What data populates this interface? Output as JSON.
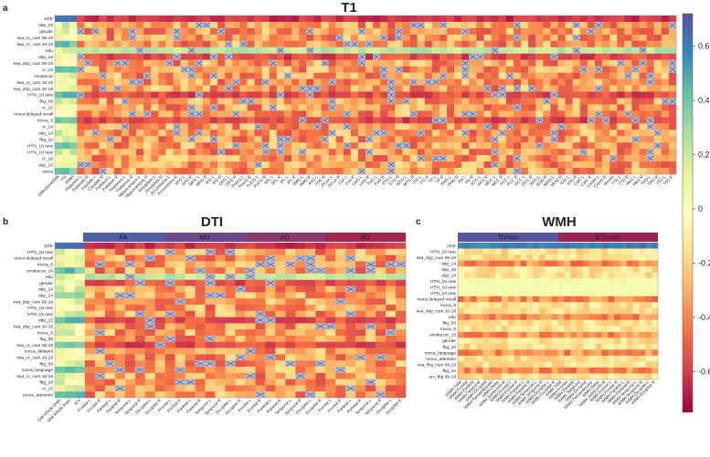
{
  "figure": {
    "panels": [
      {
        "id": "a",
        "letter": "a",
        "title": "T1"
      },
      {
        "id": "b",
        "letter": "b",
        "title": "DTI",
        "groups": [
          "FA",
          "MD",
          "AD",
          "RD"
        ]
      },
      {
        "id": "c",
        "letter": "c",
        "title": "WMH",
        "groups": [
          "TIVcorr",
          "ICVnorm"
        ]
      }
    ],
    "colorbar": {
      "ticks": [
        "0.6",
        "0.4",
        "0.2",
        "0",
        "-0.2",
        "-0.4",
        "-0.6"
      ],
      "range": [
        -0.75,
        0.72
      ],
      "colors": [
        "#9e0142",
        "#d53e4f",
        "#f46d43",
        "#fdae61",
        "#fee08b",
        "#ffffbf",
        "#e6f598",
        "#abdda4",
        "#66c2a5",
        "#3288bd",
        "#5e4fa2"
      ]
    }
  },
  "chart_data": [
    {
      "type": "heatmap",
      "title": "T1",
      "rows": [
        "AGE",
        "sbp_15",
        "gender",
        "twa_cr_cum 06-18",
        "twa_cr_cum 10-18",
        "edu",
        "sbp_18",
        "twa_sbp_cum 06-18",
        "cr_15",
        "smokecur",
        "twa_cr_cum 15-18",
        "twa_sbp_cum 10-18",
        "HTN_18 new",
        "fbg_06",
        "cr_10",
        "moca delayed recall",
        "moca_5",
        "cr_14",
        "sbp_14",
        "fbg_10",
        "HTN_15 new",
        "HTN_18 new",
        "cr_18",
        "sbp_10",
        "moca"
      ],
      "columns": [
        "GMvolumeWM",
        "TIV",
        "WMH",
        "Putamen L",
        "Putamen R",
        "Caudate L",
        "Caudate R",
        "Pallidum L",
        "Pallidum R",
        "Thalamus L",
        "Thalamus R",
        "Hippocampus L",
        "Hippocampus R",
        "Amygdala L",
        "Amygdala R",
        "Accumbens L",
        "Accumbens R",
        "SFG L",
        "SFG R",
        "MFG L",
        "MFG R",
        "IFG L",
        "IFG R",
        "OFG L",
        "OFG R",
        "PrecG L",
        "PrecG R",
        "PoCG L",
        "PoCG R",
        "SPL L",
        "SPL R",
        "IPL L",
        "IPL R",
        "SMG L",
        "SMG R",
        "AnG L",
        "AnG R",
        "PCun L",
        "PCun R",
        "Cun L",
        "Cun R",
        "LinG L",
        "LinG R",
        "FuG L",
        "FuG R",
        "STG L",
        "STG R",
        "MTG L",
        "MTG R",
        "ITG L",
        "ITG R",
        "TP L",
        "TP R",
        "PHG L",
        "PHG R",
        "Ins L",
        "Ins R",
        "ACC L",
        "ACC R",
        "MCC L",
        "MCC R",
        "PCC L",
        "PCC R",
        "OCC L",
        "OCC R",
        "SOG L",
        "SOG R",
        "MOG L",
        "MOG R",
        "IOG L",
        "IOG R",
        "CalC L",
        "CalC R",
        "Cereb L",
        "Cereb R",
        "Vermis",
        "TTG L",
        "TTG R",
        "HeG L",
        "HeG R",
        "TPO L",
        "TPO R",
        "TOJ L",
        "TOJ R"
      ],
      "value_range": [
        -0.75,
        0.72
      ],
      "marker": "x = non-significant"
    },
    {
      "type": "heatmap",
      "title": "DTI",
      "groups": [
        "FA",
        "MD",
        "AD",
        "RD"
      ],
      "rows": [
        "AGE",
        "HTN_10 new",
        "moca delayed recall",
        "moca_5",
        "smokecur_15",
        "edu",
        "gender",
        "sbp_18",
        "sbp_14",
        "twa_sbp_cum 06-18",
        "HTN_18 new",
        "HTN_15 new",
        "sbp_15",
        "twa_sbp_cum 10-18",
        "moca_5",
        "fbg_06",
        "twa_cr_cum 06-18",
        "moca_delayed",
        "twa_cr_cum 10-18",
        "fbg_06",
        "moca_language",
        "twa_cr_cum 15-18",
        "fbg_18",
        "cr_15",
        "moca_attention"
      ],
      "columns": [
        "GM Whole brain",
        "WM Whole brain",
        "ICV",
        "Frontal L",
        "Frontal R",
        "Parietal L",
        "Parietal R",
        "Temporal L",
        "Temporal R",
        "Occipital L",
        "Occipital R",
        "Frontal L",
        "Frontal R",
        "Parietal L",
        "Parietal R",
        "Temporal L",
        "Temporal R",
        "Occipital L",
        "Occipital R",
        "Frontal L",
        "Frontal R",
        "Parietal L",
        "Parietal R",
        "Temporal L",
        "Temporal R",
        "Occipital L",
        "Occipital R",
        "Frontal L",
        "Frontal R",
        "Parietal L",
        "Parietal R",
        "Temporal L",
        "Temporal R",
        "Occipital L",
        "Occipital R"
      ],
      "value_range": [
        -0.75,
        0.72
      ],
      "marker": "x = non-significant"
    },
    {
      "type": "heatmap",
      "title": "WMH",
      "groups": [
        "TIVcorr",
        "ICVnorm"
      ],
      "rows": [
        "AGE",
        "HTN_18 new",
        "twa_sbp_cum 06-18",
        "sbp_14",
        "sbp_15",
        "sbp_18",
        "HTN_15 new",
        "HTN_18 new",
        "HTN_10 new",
        "moca delayed recall",
        "moca_5",
        "twa_sbp_cum 10-18",
        "edu",
        "fbg_06",
        "moca_5",
        "smokecur_15",
        "gender",
        "fbg_10",
        "moca_language",
        "moca_attention",
        "twa_fbg_cum 06-18",
        "fbg_10",
        "arc_fbg 06-18"
      ],
      "columns": [
        "WMH Total",
        "WMH Frontal",
        "WMH Parietal",
        "WMH Temporal",
        "WMH Occipital",
        "WMH Periventricular",
        "WMH Deep",
        "WMH Juxtacortical",
        "WMH Frontal L",
        "WMH Frontal R",
        "WMH Parietal L",
        "WMH Parietal R",
        "WMH Temporal L",
        "WMH Temporal R",
        "WMH Occipital L",
        "WMH Occipital R",
        "WMH Total",
        "WMH Frontal",
        "WMH Parietal",
        "WMH Temporal",
        "WMH Occipital",
        "WMH Periventricular",
        "WMH Deep",
        "WMH Juxtacortical",
        "WMH Frontal L",
        "WMH Frontal R",
        "WMH Parietal L",
        "WMH Parietal R",
        "WMH Temporal L",
        "WMH Temporal R",
        "WMH Occipital L",
        "WMH Occipital R"
      ],
      "value_range": [
        -0.75,
        0.72
      ],
      "marker": "x = non-significant"
    }
  ]
}
